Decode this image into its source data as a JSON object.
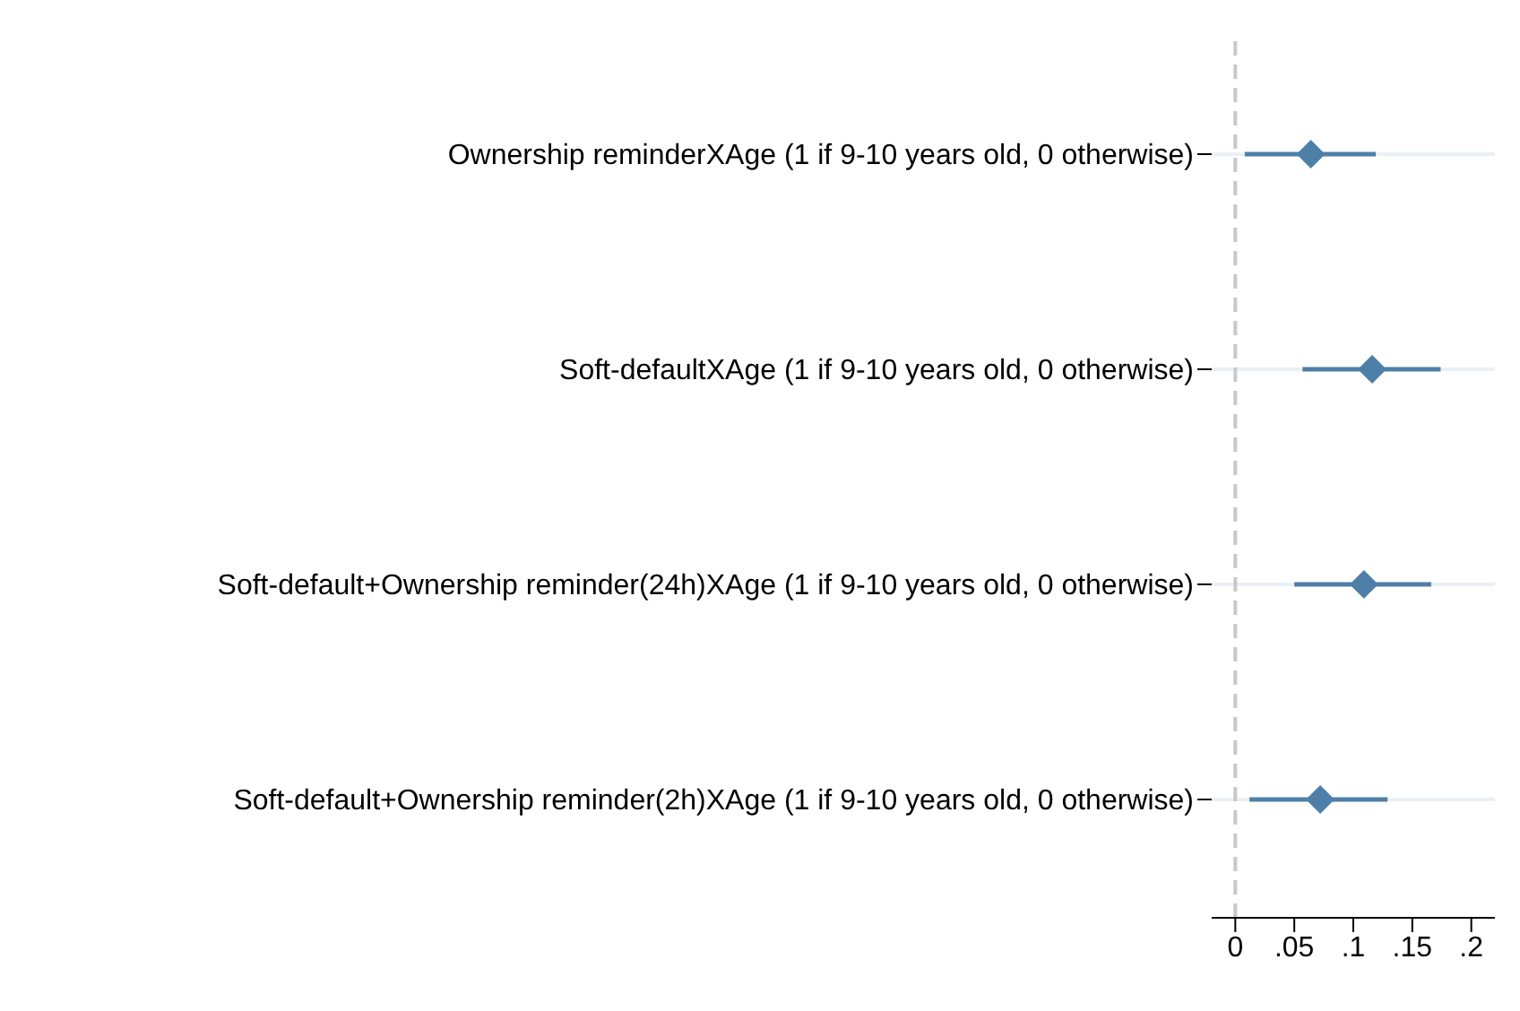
{
  "chart_data": {
    "type": "scatter",
    "orientation": "horizontal",
    "categories": [
      "Ownership reminderXAge (1 if 9-10 years old, 0 otherwise)",
      "Soft-defaultXAge (1 if 9-10 years old, 0 otherwise)",
      "Soft-default+Ownership reminder(24h)XAge (1 if 9-10 years old, 0 otherwise)",
      "Soft-default+Ownership reminder(2h)XAge (1 if 9-10 years old, 0 otherwise)"
    ],
    "values": [
      0.064,
      0.116,
      0.109,
      0.072
    ],
    "errors": [
      [
        0.008,
        0.119
      ],
      [
        0.057,
        0.174
      ],
      [
        0.05,
        0.166
      ],
      [
        0.012,
        0.129
      ]
    ],
    "color": "#4e7fa8",
    "marker": "diamond",
    "xlim": [
      -0.02,
      0.22
    ],
    "xticks": [
      0,
      {
        "value": 0.05,
        "label": ".05"
      },
      {
        "value": 0.1,
        "label": ".1"
      },
      {
        "value": 0.15,
        "label": ".15"
      },
      {
        "value": 0.2,
        "label": ".2"
      }
    ],
    "grid": "y",
    "ref_lines": [
      {
        "axis": "x",
        "value": 0,
        "color": "#c8c8c8",
        "line_style": "dashed"
      }
    ]
  }
}
